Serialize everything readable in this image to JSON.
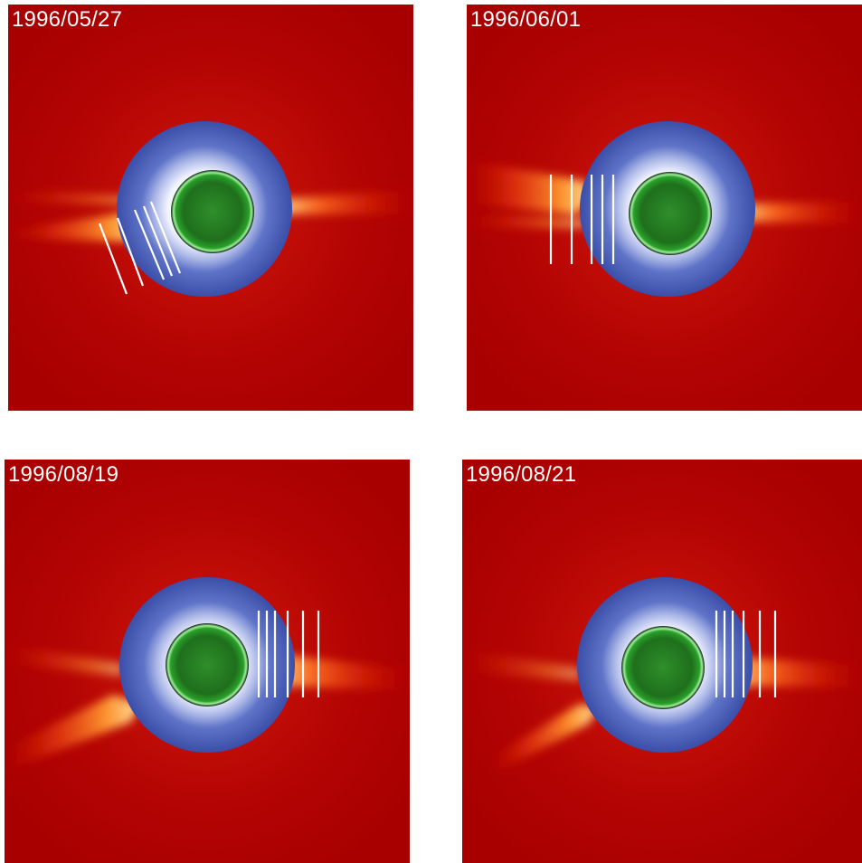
{
  "panels": [
    {
      "date": "1996/05/27"
    },
    {
      "date": "1996/06/01"
    },
    {
      "date": "1996/08/19"
    },
    {
      "date": "1996/08/21"
    }
  ],
  "colors": {
    "coronagraph_background": "#b00000",
    "streamer": "#ff7a20",
    "occulter_disk": "#3a4fb0",
    "inner_corona": "#e8ecff",
    "solar_disk": "#1e7a1e",
    "marker_lines": "#ffffff"
  }
}
